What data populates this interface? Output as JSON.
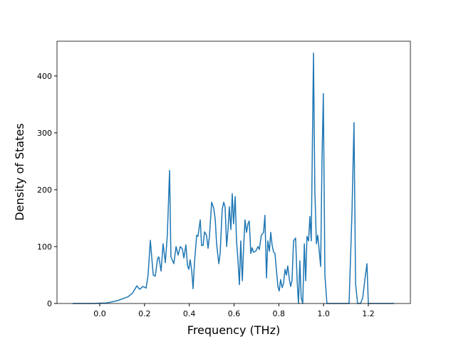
{
  "chart_data": {
    "type": "line",
    "xlabel": "Frequency (THz)",
    "ylabel": "Density of States",
    "xlim": [
      -0.191,
      1.388
    ],
    "ylim": [
      0,
      461
    ],
    "xticks": [
      {
        "value": 0,
        "label": "0.0"
      },
      0.2,
      0.4,
      0.6,
      0.8,
      {
        "value": 1,
        "label": "1.0"
      },
      1.2
    ],
    "yticks": [
      0,
      100,
      200,
      300,
      400
    ],
    "series": [
      {
        "color": "#1f77b4",
        "x": [
          -0.121,
          -0.032,
          0.032,
          0.08,
          0.127,
          0.146,
          0.166,
          0.178,
          0.194,
          0.207,
          0.216,
          0.226,
          0.239,
          0.248,
          0.258,
          0.264,
          0.274,
          0.283,
          0.293,
          0.302,
          0.312,
          0.318,
          0.331,
          0.341,
          0.35,
          0.36,
          0.369,
          0.376,
          0.385,
          0.392,
          0.398,
          0.404,
          0.411,
          0.417,
          0.423,
          0.433,
          0.439,
          0.449,
          0.455,
          0.462,
          0.468,
          0.477,
          0.484,
          0.49,
          0.5,
          0.509,
          0.516,
          0.522,
          0.532,
          0.538,
          0.547,
          0.554,
          0.56,
          0.567,
          0.573,
          0.579,
          0.586,
          0.592,
          0.598,
          0.605,
          0.611,
          0.617,
          0.624,
          0.63,
          0.637,
          0.643,
          0.649,
          0.656,
          0.662,
          0.668,
          0.675,
          0.681,
          0.687,
          0.697,
          0.707,
          0.713,
          0.722,
          0.732,
          0.738,
          0.745,
          0.751,
          0.758,
          0.764,
          0.77,
          0.777,
          0.783,
          0.789,
          0.796,
          0.802,
          0.808,
          0.815,
          0.821,
          0.828,
          0.834,
          0.84,
          0.847,
          0.853,
          0.859,
          0.866,
          0.875,
          0.882,
          0.888,
          0.894,
          0.9,
          0.907,
          0.914,
          0.92,
          0.926,
          0.933,
          0.939,
          0.945,
          0.955,
          0.961,
          0.968,
          0.974,
          0.98,
          0.987,
          0.993,
          0.999,
          1.006,
          1.015,
          1.034,
          1.114,
          1.127,
          1.136,
          1.143,
          1.152,
          1.165,
          1.175,
          1.184,
          1.194,
          1.2,
          1.21,
          1.315
        ],
        "values": [
          0,
          0,
          1,
          5,
          12,
          18,
          31,
          25,
          30,
          27,
          50,
          111,
          50,
          48,
          78,
          82,
          57,
          105,
          72,
          120,
          234,
          82,
          70,
          100,
          85,
          100,
          96,
          80,
          103,
          67,
          60,
          77,
          57,
          26,
          70,
          120,
          118,
          147,
          102,
          102,
          126,
          120,
          97,
          118,
          178,
          168,
          148,
          105,
          70,
          88,
          165,
          178,
          170,
          100,
          130,
          170,
          130,
          193,
          140,
          188,
          110,
          80,
          33,
          110,
          40,
          100,
          147,
          125,
          140,
          145,
          88,
          98,
          90,
          92,
          100,
          95,
          120,
          125,
          155,
          45,
          110,
          92,
          125,
          103,
          90,
          88,
          60,
          30,
          22,
          42,
          28,
          35,
          60,
          50,
          66,
          43,
          30,
          40,
          110,
          115,
          40,
          0,
          75,
          10,
          0,
          105,
          40,
          118,
          110,
          153,
          110,
          440,
          200,
          105,
          120,
          95,
          65,
          250,
          369,
          50,
          0,
          0,
          0,
          160,
          318,
          35,
          0,
          0,
          10,
          40,
          70,
          0,
          0,
          0
        ]
      }
    ]
  }
}
